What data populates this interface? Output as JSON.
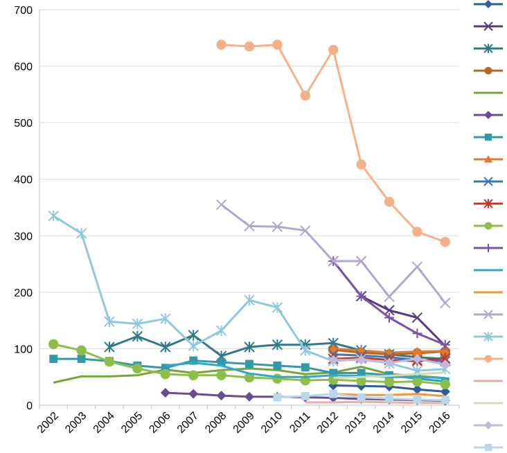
{
  "chart_data": {
    "type": "line",
    "title": "",
    "xlabel": "",
    "ylabel": "",
    "ylim": [
      0,
      700
    ],
    "yticks": [
      "0",
      "100",
      "200",
      "300",
      "400",
      "500",
      "600",
      "700"
    ],
    "categories": [
      "2002",
      "2003",
      "2004",
      "2005",
      "2006",
      "2007",
      "2008",
      "2009",
      "2010",
      "2011",
      "2012",
      "2013",
      "2014",
      "2015",
      "2016"
    ],
    "grid": "horizontal",
    "legend_position": "right",
    "series": [
      {
        "name": "",
        "color": "#2E5C9E",
        "marker": "diamond",
        "values": [
          null,
          null,
          null,
          null,
          null,
          null,
          null,
          null,
          null,
          null,
          35,
          34,
          33,
          28,
          24
        ]
      },
      {
        "name": "",
        "color": "#5B3A7A",
        "marker": "x",
        "values": [
          null,
          null,
          null,
          null,
          null,
          null,
          null,
          null,
          null,
          null,
          255,
          193,
          168,
          155,
          105
        ]
      },
      {
        "name": "",
        "color": "#2E7A8A",
        "marker": "asterisk",
        "values": [
          null,
          null,
          103,
          122,
          103,
          124,
          87,
          103,
          107,
          107,
          110,
          97,
          90,
          85,
          82
        ]
      },
      {
        "name": "",
        "color": "#B8642A",
        "marker": "circle",
        "values": [
          null,
          null,
          null,
          null,
          null,
          null,
          null,
          null,
          null,
          null,
          98,
          93,
          90,
          92,
          95
        ]
      },
      {
        "name": "",
        "color": "#77A33A",
        "marker": "none",
        "values": [
          40,
          51,
          51,
          53,
          63,
          57,
          62,
          65,
          62,
          55,
          58,
          68,
          55,
          52,
          48
        ]
      },
      {
        "name": "",
        "color": "#6A4C93",
        "marker": "diamond",
        "values": [
          null,
          null,
          null,
          null,
          22,
          20,
          17,
          15,
          15,
          14,
          13,
          11,
          10,
          9,
          8
        ]
      },
      {
        "name": "",
        "color": "#3399AA",
        "marker": "square",
        "values": [
          82,
          82,
          78,
          70,
          66,
          79,
          76,
          73,
          70,
          67,
          57,
          57,
          53,
          47,
          42
        ]
      },
      {
        "name": "",
        "color": "#E07B2E",
        "marker": "triangle",
        "values": [
          null,
          null,
          null,
          null,
          null,
          null,
          null,
          null,
          null,
          null,
          100,
          97,
          93,
          95,
          96
        ]
      },
      {
        "name": "",
        "color": "#3A78B5",
        "marker": "x",
        "values": [
          null,
          null,
          null,
          null,
          null,
          null,
          null,
          null,
          null,
          null,
          90,
          88,
          85,
          80,
          78
        ]
      },
      {
        "name": "",
        "color": "#C0392B",
        "marker": "asterisk",
        "values": [
          null,
          null,
          null,
          null,
          null,
          null,
          null,
          null,
          null,
          null,
          82,
          84,
          80,
          78,
          83
        ]
      },
      {
        "name": "",
        "color": "#8DBE4A",
        "marker": "circle",
        "values": [
          108,
          97,
          77,
          65,
          55,
          53,
          53,
          49,
          47,
          44,
          45,
          43,
          41,
          42,
          37
        ]
      },
      {
        "name": "",
        "color": "#7A52A8",
        "marker": "plus",
        "values": [
          null,
          null,
          null,
          null,
          null,
          null,
          null,
          null,
          null,
          null,
          255,
          193,
          155,
          127,
          107
        ]
      },
      {
        "name": "",
        "color": "#2FA8C8",
        "marker": "none",
        "values": [
          null,
          null,
          null,
          null,
          70,
          75,
          70,
          56,
          50,
          50,
          53,
          52,
          50,
          50,
          48
        ]
      },
      {
        "name": "",
        "color": "#F0953A",
        "marker": "none",
        "values": [
          null,
          null,
          null,
          null,
          null,
          null,
          null,
          null,
          null,
          null,
          20,
          18,
          18,
          20,
          16
        ]
      },
      {
        "name": "",
        "color": "#B3A6CC",
        "marker": "x",
        "values": [
          null,
          null,
          null,
          null,
          null,
          null,
          355,
          317,
          316,
          309,
          255,
          255,
          192,
          245,
          181
        ]
      },
      {
        "name": "",
        "color": "#8FC7DD",
        "marker": "asterisk",
        "values": [
          335,
          304,
          148,
          144,
          153,
          105,
          132,
          186,
          173,
          97,
          78,
          82,
          74,
          61,
          64
        ]
      },
      {
        "name": "",
        "color": "#F5B08A",
        "marker": "circle",
        "values": [
          null,
          null,
          null,
          null,
          null,
          null,
          638,
          635,
          638,
          548,
          629,
          426,
          360,
          307,
          289
        ]
      },
      {
        "name": "",
        "color": "#E2B0AA",
        "marker": "none",
        "values": [
          null,
          null,
          null,
          null,
          null,
          null,
          null,
          null,
          null,
          5,
          5,
          6,
          5,
          4,
          4
        ]
      },
      {
        "name": "",
        "color": "#D2DDB4",
        "marker": "none",
        "values": [
          null,
          null,
          null,
          null,
          null,
          null,
          null,
          null,
          null,
          null,
          48,
          50,
          52,
          55,
          58
        ]
      },
      {
        "name": "",
        "color": "#C4B8DC",
        "marker": "diamond",
        "values": [
          null,
          null,
          null,
          null,
          null,
          null,
          null,
          null,
          null,
          null,
          80,
          80,
          75,
          82,
          72
        ]
      },
      {
        "name": "",
        "color": "#B8D8EA",
        "marker": "square",
        "values": [
          null,
          null,
          null,
          null,
          null,
          null,
          null,
          null,
          14,
          16,
          20,
          14,
          12,
          10,
          9
        ]
      }
    ]
  }
}
